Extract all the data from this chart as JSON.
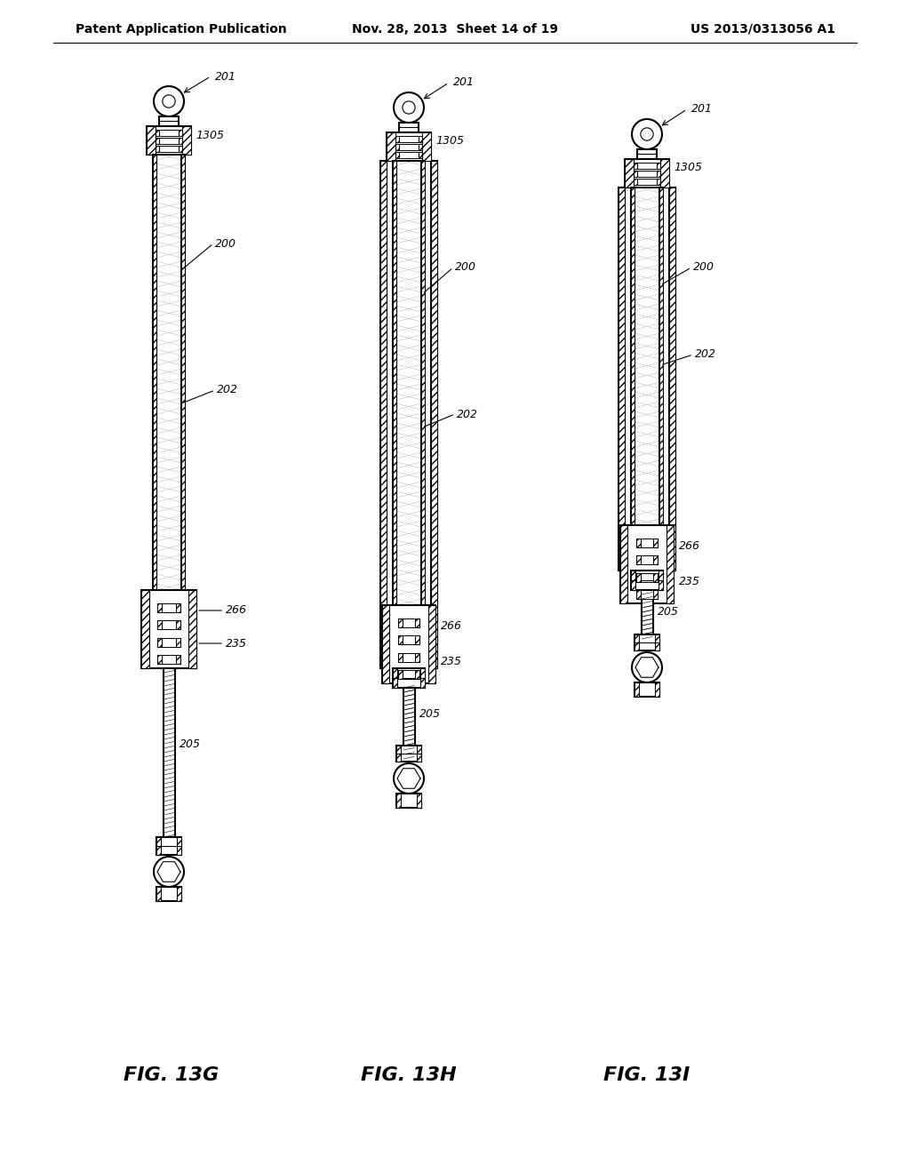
{
  "background_color": "#ffffff",
  "header_left": "Patent Application Publication",
  "header_center": "Nov. 28, 2013  Sheet 14 of 19",
  "header_right": "US 2013/0313056 A1",
  "fig_labels": [
    "FIG. 13G",
    "FIG. 13H",
    "FIG. 13I"
  ],
  "line_color": "#000000",
  "text_color": "#000000",
  "header_fontsize": 10,
  "fig_label_fontsize": 16,
  "ref_fontsize": 9
}
